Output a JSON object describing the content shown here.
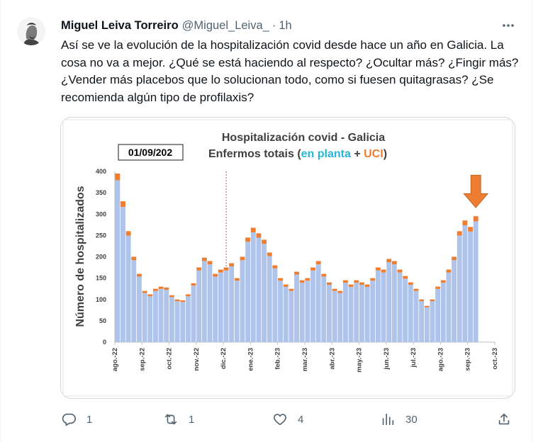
{
  "tweet": {
    "display_name": "Miguel Leiva Torreiro",
    "handle": "@Miguel_Leiva_",
    "separator": "·",
    "time": "1h",
    "text": "Así se ve la evolución de la hospitalización covid desde hace un año en Galicia. La cosa no va a mejor. ¿Qué se está haciendo al respecto? ¿Ocultar más? ¿Fingir más? ¿Vender más placebos que lo solucionan todo, como si fuesen quitagrasas? ¿Se recomienda algún tipo de profilaxis?"
  },
  "actions": {
    "replies": "1",
    "retweets": "1",
    "likes": "4",
    "views": "30"
  },
  "icons": [
    "more-icon",
    "reply-icon",
    "retweet-icon",
    "like-icon",
    "views-icon",
    "share-icon"
  ],
  "colors": {
    "text_primary": "#0f1419",
    "text_secondary": "#536471",
    "border": "#cfd9de",
    "bar_ward": "#aec4ea",
    "bar_uci": "#ed7d31",
    "title_ward": "#29b6d6",
    "title_uci": "#ed7d31",
    "arrow": "#ed7d31"
  },
  "chart_data": {
    "type": "bar",
    "stacked": true,
    "date_box": "01/09/202",
    "title_line1": "Hospitalización covid - Galicia",
    "title_line2_prefix": "Enfermos totais (",
    "title_line2_ward": "en planta",
    "title_line2_plus": " + ",
    "title_line2_uci": "UCI",
    "title_line2_suffix": ")",
    "ylabel": "Número de hospitalizados",
    "ylim": [
      0,
      400
    ],
    "yticks": [
      0,
      50,
      100,
      150,
      200,
      250,
      300,
      350,
      400
    ],
    "xticks": [
      "ago.-22",
      "sep.-22",
      "oct.-22",
      "nov.-22",
      "dic.-22",
      "ene.-23",
      "feb.-23",
      "mar.-23",
      "abr.-23",
      "may.-23",
      "jun.-23",
      "jul.-23",
      "ago.-23",
      "sep.-23",
      "oct.-23"
    ],
    "grid": false,
    "reference_line_month": "dic.-22",
    "monthly_totals": [
      {
        "month": "ago.-22",
        "values": [
          395,
          330,
          260,
          200,
          160
        ]
      },
      {
        "month": "sep.-22",
        "values": [
          120,
          112,
          125,
          130,
          128
        ]
      },
      {
        "month": "oct.-22",
        "values": [
          110,
          100,
          98,
          112,
          138
        ]
      },
      {
        "month": "nov.-22",
        "values": [
          175,
          198,
          190,
          160,
          170
        ]
      },
      {
        "month": "dic.-22",
        "values": [
          175,
          185,
          150,
          200,
          245
        ]
      },
      {
        "month": "ene.-23",
        "values": [
          268,
          255,
          240,
          210,
          180
        ]
      },
      {
        "month": "feb.-23",
        "values": [
          150,
          135,
          125,
          165,
          145
        ]
      },
      {
        "month": "mar.-23",
        "values": [
          150,
          175,
          190,
          160,
          140
        ]
      },
      {
        "month": "abr.-23",
        "values": [
          125,
          120,
          145,
          135,
          145
        ]
      },
      {
        "month": "may.-23",
        "values": [
          140,
          135,
          150,
          175,
          170
        ]
      },
      {
        "month": "jun.-23",
        "values": [
          195,
          190,
          170,
          155,
          140
        ]
      },
      {
        "month": "jul.-23",
        "values": [
          125,
          100,
          85,
          100,
          130
        ]
      },
      {
        "month": "ago.-23",
        "values": [
          145,
          170,
          200,
          260,
          285
        ]
      },
      {
        "month": "sep.-23",
        "values": [
          270,
          295
        ]
      }
    ]
  }
}
